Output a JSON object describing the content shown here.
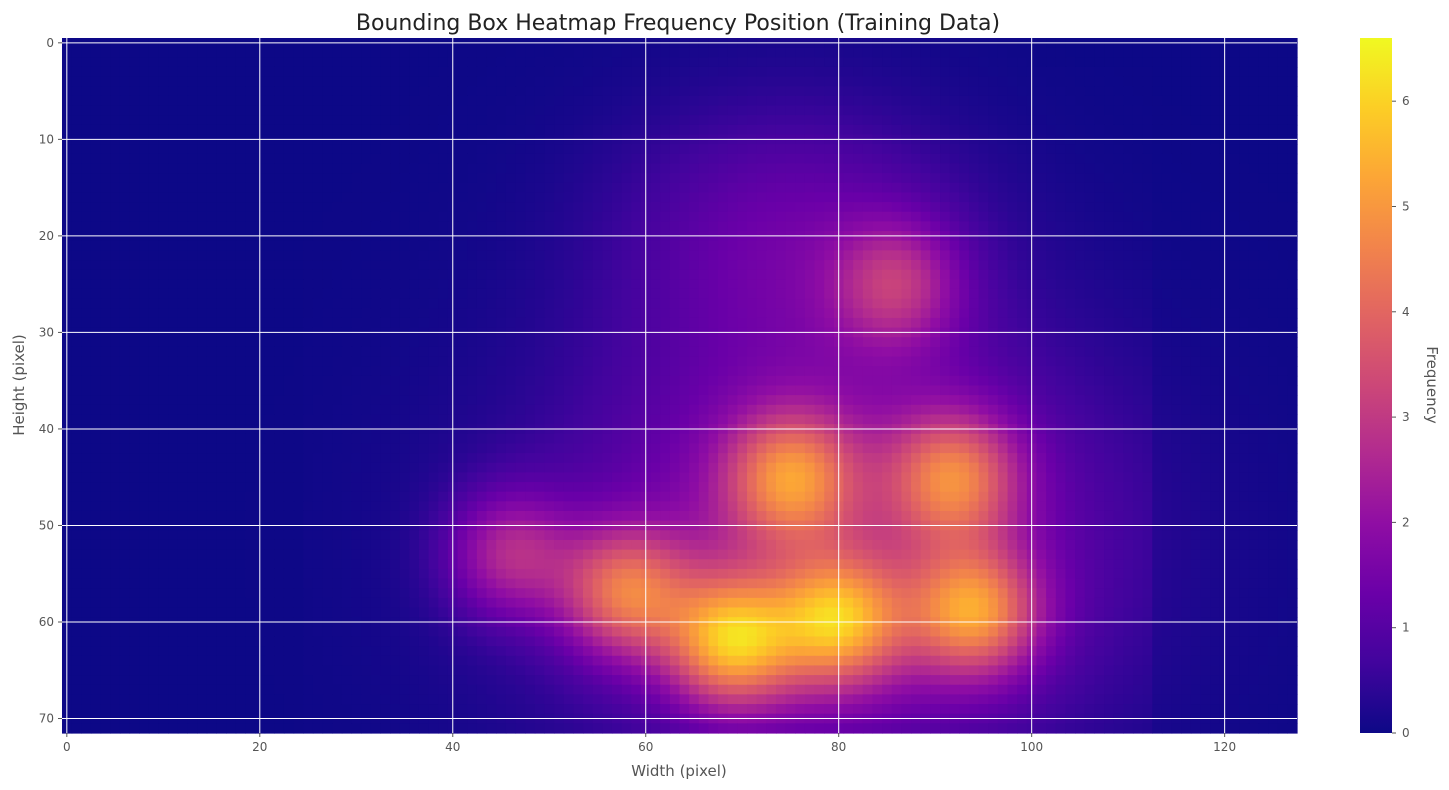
{
  "chart_data": {
    "type": "heatmap",
    "title": "Bounding Box Heatmap Frequency Position (Training Data)",
    "xlabel": "Width (pixel)",
    "ylabel": "Height (pixel)",
    "colorbar_label": "Frequency",
    "colormap": "plasma",
    "grid": true,
    "x_range": [
      -0.5,
      127.5
    ],
    "y_range": [
      71.5,
      -0.5
    ],
    "x_ticks": [
      "0",
      "20",
      "40",
      "60",
      "80",
      "100",
      "120"
    ],
    "y_ticks": [
      "0",
      "10",
      "20",
      "30",
      "40",
      "50",
      "60",
      "70"
    ],
    "colorbar_ticks": [
      "0",
      "1",
      "2",
      "3",
      "4",
      "5",
      "6"
    ],
    "value_range": [
      0,
      6.6
    ],
    "hotspots": [
      {
        "x": 69,
        "y": 62,
        "peak": 6.6
      },
      {
        "x": 80,
        "y": 60,
        "peak": 6.2
      },
      {
        "x": 94,
        "y": 59,
        "peak": 6.0
      },
      {
        "x": 58,
        "y": 57,
        "peak": 5.6
      },
      {
        "x": 92,
        "y": 45,
        "peak": 5.4
      },
      {
        "x": 75,
        "y": 45,
        "peak": 5.5
      },
      {
        "x": 86,
        "y": 25,
        "peak": 4.2
      },
      {
        "x": 46,
        "y": 53,
        "peak": 4.4
      },
      {
        "x": 78,
        "y": 8,
        "peak": 2.2
      }
    ]
  }
}
